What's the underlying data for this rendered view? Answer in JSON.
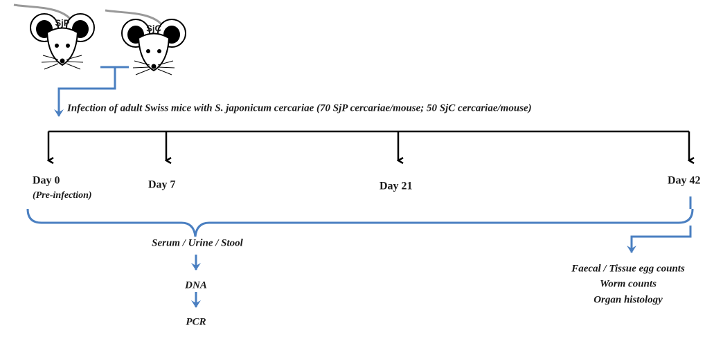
{
  "mice": [
    {
      "label": "SjP"
    },
    {
      "label": "SjC"
    }
  ],
  "infection": "Infection of adult Swiss mice with S. japonicum cercariae (70 SjP cercariae/mouse; 50 SjC cercariae/mouse)",
  "timepoints": [
    {
      "label": "Day 0",
      "note": "(Pre-infection)"
    },
    {
      "label": "Day 7"
    },
    {
      "label": "Day 21"
    },
    {
      "label": "Day 42"
    }
  ],
  "samples": [
    "Serum / Urine / Stool",
    "DNA",
    "PCR"
  ],
  "outcomes": [
    "Faecal / Tissue egg counts",
    "Worm counts",
    "Organ histology"
  ]
}
